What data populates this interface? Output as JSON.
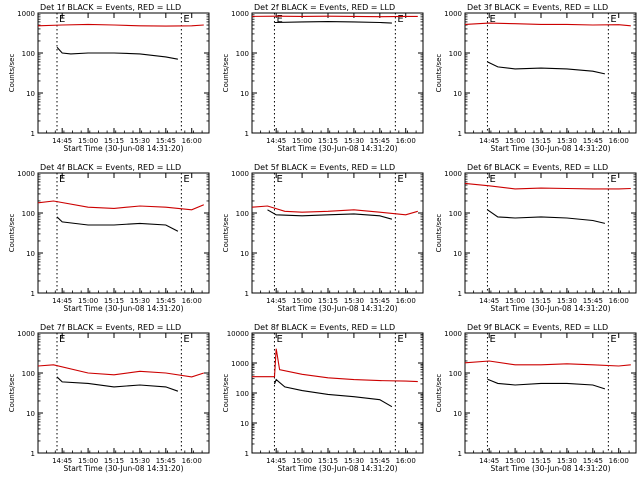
{
  "figure": {
    "x_axis_label": "Start Time (30-Jun-08 14:31:20)",
    "y_axis_label": "Counts/sec",
    "x_tick_labels": [
      "14:45",
      "15:00",
      "15:15",
      "15:30",
      "15:45",
      "16:00"
    ],
    "y_tick_labels": [
      "1",
      "10",
      "100",
      "1000"
    ],
    "marker_label": "E",
    "colors": {
      "events": "#000000",
      "lld": "#cc0000",
      "frame": "#000000"
    }
  },
  "chart_data": [
    {
      "type": "line",
      "title": "Det 1f BLACK = Events, RED = LLD",
      "xlabel": "Start Time (30-Jun-08 14:31:20)",
      "ylabel": "Counts/sec",
      "xlim": [
        "14:31",
        "16:10"
      ],
      "ylim": [
        1,
        1000
      ],
      "y_scale": "log",
      "x_ticks": [
        "14:45",
        "15:00",
        "15:15",
        "15:30",
        "15:45",
        "16:00"
      ],
      "dotted_markers": [
        "14:42",
        "15:54"
      ],
      "series": [
        {
          "name": "Events",
          "color": "#000000",
          "x": [
            "14:42",
            "14:45",
            "14:50",
            "15:00",
            "15:15",
            "15:30",
            "15:45",
            "15:52"
          ],
          "y": [
            140,
            100,
            95,
            100,
            100,
            95,
            80,
            70
          ]
        },
        {
          "name": "LLD",
          "color": "#cc0000",
          "x": [
            "14:31",
            "14:45",
            "15:00",
            "15:15",
            "15:30",
            "15:45",
            "16:00",
            "16:07"
          ],
          "y": [
            480,
            500,
            520,
            500,
            480,
            470,
            480,
            500
          ]
        }
      ]
    },
    {
      "type": "line",
      "title": "Det 2f BLACK = Events, RED = LLD",
      "xlabel": "Start Time (30-Jun-08 14:31:20)",
      "ylabel": "Counts/sec",
      "xlim": [
        "14:31",
        "16:10"
      ],
      "ylim": [
        1,
        1000
      ],
      "y_scale": "log",
      "x_ticks": [
        "14:45",
        "15:00",
        "15:15",
        "15:30",
        "15:45",
        "16:00"
      ],
      "dotted_markers": [
        "14:44",
        "15:54"
      ],
      "series": [
        {
          "name": "Events",
          "color": "#000000",
          "x": [
            "14:44",
            "15:00",
            "15:15",
            "15:30",
            "15:45",
            "15:52"
          ],
          "y": [
            580,
            600,
            610,
            600,
            580,
            560
          ]
        },
        {
          "name": "LLD",
          "color": "#cc0000",
          "x": [
            "14:31",
            "14:45",
            "15:00",
            "15:15",
            "15:30",
            "15:45",
            "16:00",
            "16:07"
          ],
          "y": [
            820,
            830,
            820,
            830,
            820,
            810,
            820,
            820
          ]
        }
      ]
    },
    {
      "type": "line",
      "title": "Det 3f BLACK = Events, RED = LLD",
      "xlabel": "Start Time (30-Jun-08 14:31:20)",
      "ylabel": "Counts/sec",
      "xlim": [
        "14:31",
        "16:10"
      ],
      "ylim": [
        1,
        1000
      ],
      "y_scale": "log",
      "x_ticks": [
        "14:45",
        "15:00",
        "15:15",
        "15:30",
        "15:45",
        "16:00"
      ],
      "dotted_markers": [
        "14:44",
        "15:54"
      ],
      "series": [
        {
          "name": "Events",
          "color": "#000000",
          "x": [
            "14:44",
            "14:50",
            "15:00",
            "15:15",
            "15:30",
            "15:45",
            "15:52"
          ],
          "y": [
            60,
            45,
            40,
            42,
            40,
            35,
            30
          ]
        },
        {
          "name": "LLD",
          "color": "#cc0000",
          "x": [
            "14:31",
            "14:45",
            "15:00",
            "15:15",
            "15:30",
            "15:45",
            "16:00",
            "16:07"
          ],
          "y": [
            520,
            560,
            540,
            520,
            520,
            500,
            510,
            480
          ]
        }
      ]
    },
    {
      "type": "line",
      "title": "Det 4f BLACK = Events, RED = LLD",
      "xlabel": "Start Time (30-Jun-08 14:31:20)",
      "ylabel": "Counts/sec",
      "xlim": [
        "14:31",
        "16:10"
      ],
      "ylim": [
        1,
        1000
      ],
      "y_scale": "log",
      "x_ticks": [
        "14:45",
        "15:00",
        "15:15",
        "15:30",
        "15:45",
        "16:00"
      ],
      "dotted_markers": [
        "14:42",
        "15:54"
      ],
      "series": [
        {
          "name": "Events",
          "color": "#000000",
          "x": [
            "14:42",
            "14:45",
            "15:00",
            "15:15",
            "15:30",
            "15:45",
            "15:52"
          ],
          "y": [
            80,
            60,
            50,
            50,
            55,
            50,
            35
          ]
        },
        {
          "name": "LLD",
          "color": "#cc0000",
          "x": [
            "14:31",
            "14:40",
            "15:00",
            "15:15",
            "15:30",
            "15:45",
            "16:00",
            "16:07"
          ],
          "y": [
            180,
            200,
            140,
            130,
            150,
            140,
            120,
            160
          ]
        }
      ]
    },
    {
      "type": "line",
      "title": "Det 5f BLACK = Events, RED = LLD",
      "xlabel": "Start Time (30-Jun-08 14:31:20)",
      "ylabel": "Counts/sec",
      "xlim": [
        "14:31",
        "16:10"
      ],
      "ylim": [
        1,
        1000
      ],
      "y_scale": "log",
      "x_ticks": [
        "14:45",
        "15:00",
        "15:15",
        "15:30",
        "15:45",
        "16:00"
      ],
      "dotted_markers": [
        "14:44",
        "15:54"
      ],
      "series": [
        {
          "name": "Events",
          "color": "#000000",
          "x": [
            "14:40",
            "14:45",
            "15:00",
            "15:15",
            "15:30",
            "15:45",
            "15:52"
          ],
          "y": [
            120,
            90,
            85,
            90,
            95,
            85,
            70
          ]
        },
        {
          "name": "LLD",
          "color": "#cc0000",
          "x": [
            "14:31",
            "14:40",
            "14:50",
            "15:00",
            "15:15",
            "15:30",
            "15:45",
            "16:00",
            "16:07"
          ],
          "y": [
            140,
            150,
            110,
            105,
            110,
            120,
            105,
            90,
            110
          ]
        }
      ]
    },
    {
      "type": "line",
      "title": "Det 6f BLACK = Events, RED = LLD",
      "xlabel": "Start Time (30-Jun-08 14:31:20)",
      "ylabel": "Counts/sec",
      "xlim": [
        "14:31",
        "16:10"
      ],
      "ylim": [
        1,
        1000
      ],
      "y_scale": "log",
      "x_ticks": [
        "14:45",
        "15:00",
        "15:15",
        "15:30",
        "15:45",
        "16:00"
      ],
      "dotted_markers": [
        "14:44",
        "15:54"
      ],
      "series": [
        {
          "name": "Events",
          "color": "#000000",
          "x": [
            "14:44",
            "14:50",
            "15:00",
            "15:15",
            "15:30",
            "15:45",
            "15:52"
          ],
          "y": [
            120,
            80,
            75,
            80,
            75,
            65,
            55
          ]
        },
        {
          "name": "LLD",
          "color": "#cc0000",
          "x": [
            "14:31",
            "14:45",
            "15:00",
            "15:15",
            "15:30",
            "15:45",
            "16:00",
            "16:07"
          ],
          "y": [
            550,
            480,
            400,
            420,
            410,
            400,
            400,
            410
          ]
        }
      ]
    },
    {
      "type": "line",
      "title": "Det 7f BLACK = Events, RED = LLD",
      "xlabel": "Start Time (30-Jun-08 14:31:20)",
      "ylabel": "Counts/sec",
      "xlim": [
        "14:31",
        "16:10"
      ],
      "ylim": [
        1,
        1000
      ],
      "y_scale": "log",
      "x_ticks": [
        "14:45",
        "15:00",
        "15:15",
        "15:30",
        "15:45",
        "16:00"
      ],
      "dotted_markers": [
        "14:42",
        "15:54"
      ],
      "series": [
        {
          "name": "Events",
          "color": "#000000",
          "x": [
            "14:42",
            "14:45",
            "15:00",
            "15:15",
            "15:30",
            "15:45",
            "15:52"
          ],
          "y": [
            80,
            60,
            55,
            45,
            50,
            45,
            35
          ]
        },
        {
          "name": "LLD",
          "color": "#cc0000",
          "x": [
            "14:31",
            "14:40",
            "15:00",
            "15:15",
            "15:30",
            "15:45",
            "16:00",
            "16:07"
          ],
          "y": [
            150,
            160,
            100,
            90,
            110,
            100,
            80,
            100
          ]
        }
      ]
    },
    {
      "type": "line",
      "title": "Det 8f BLACK = Events, RED = LLD",
      "xlabel": "Start Time (30-Jun-08 14:31:20)",
      "ylabel": "Counts/sec",
      "xlim": [
        "14:31",
        "16:10"
      ],
      "ylim": [
        1,
        10000
      ],
      "y_scale": "log",
      "x_ticks": [
        "14:45",
        "15:00",
        "15:15",
        "15:30",
        "15:45",
        "16:00"
      ],
      "dotted_markers": [
        "14:44",
        "15:54"
      ],
      "series": [
        {
          "name": "Events",
          "color": "#000000",
          "x": [
            "14:44",
            "14:45",
            "14:50",
            "15:00",
            "15:15",
            "15:30",
            "15:45",
            "15:52"
          ],
          "y": [
            200,
            280,
            160,
            120,
            90,
            75,
            60,
            35
          ]
        },
        {
          "name": "LLD",
          "color": "#cc0000",
          "x": [
            "14:31",
            "14:44",
            "14:45",
            "14:47",
            "15:00",
            "15:15",
            "15:30",
            "15:45",
            "16:00",
            "16:07"
          ],
          "y": [
            350,
            350,
            3000,
            600,
            420,
            320,
            280,
            260,
            250,
            240
          ]
        }
      ]
    },
    {
      "type": "line",
      "title": "Det 9f BLACK = Events, RED = LLD",
      "xlabel": "Start Time (30-Jun-08 14:31:20)",
      "ylabel": "Counts/sec",
      "xlim": [
        "14:31",
        "16:10"
      ],
      "ylim": [
        1,
        1000
      ],
      "y_scale": "log",
      "x_ticks": [
        "14:45",
        "15:00",
        "15:15",
        "15:30",
        "15:45",
        "16:00"
      ],
      "dotted_markers": [
        "14:44",
        "15:54"
      ],
      "series": [
        {
          "name": "Events",
          "color": "#000000",
          "x": [
            "14:44",
            "14:50",
            "15:00",
            "15:15",
            "15:30",
            "15:45",
            "15:52"
          ],
          "y": [
            70,
            55,
            50,
            55,
            55,
            50,
            40
          ]
        },
        {
          "name": "LLD",
          "color": "#cc0000",
          "x": [
            "14:31",
            "14:45",
            "15:00",
            "15:15",
            "15:30",
            "15:45",
            "16:00",
            "16:07"
          ],
          "y": [
            180,
            200,
            160,
            160,
            170,
            160,
            150,
            160
          ]
        }
      ]
    }
  ]
}
